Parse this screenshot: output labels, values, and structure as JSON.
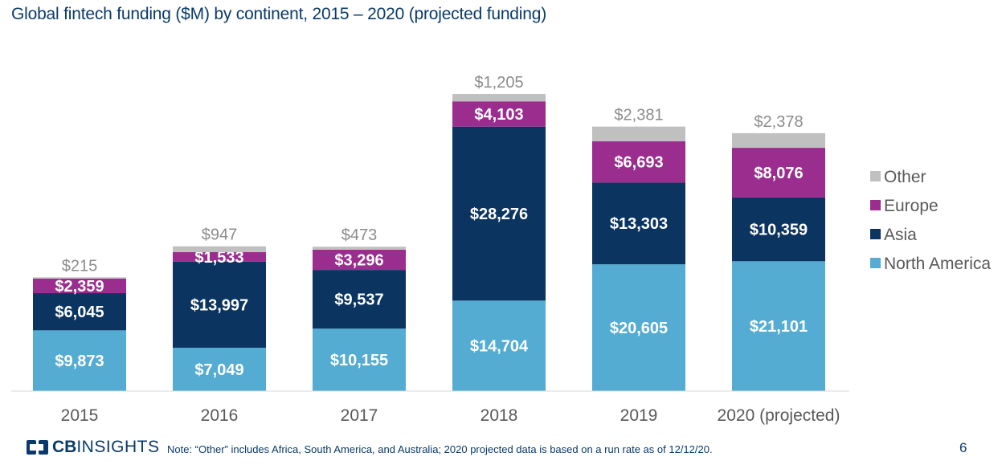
{
  "page": {
    "title": "Global fintech funding ($M) by continent, 2015 – 2020 (projected funding)",
    "note": "Note: “Other” includes Africa, South America, and Australia; 2020 projected data is based on a run rate as of 12/12/20.",
    "page_number": "6",
    "logo": {
      "cb": "CB",
      "insights": "INSIGHTS",
      "icon": "cbinsights-logo-icon"
    }
  },
  "colors": {
    "north_america": "#54acd2",
    "asia": "#0b3460",
    "europe": "#9b2d8f",
    "other": "#c0c0c0",
    "title": "#0a3a6b"
  },
  "chart_data": {
    "type": "bar",
    "stacked": true,
    "categories": [
      "2015",
      "2016",
      "2017",
      "2018",
      "2019",
      "2020 (projected)"
    ],
    "series": [
      {
        "name": "North America",
        "values": [
          9873,
          7049,
          10155,
          14704,
          20605,
          21101
        ],
        "labels": [
          "$9,873",
          "$7,049",
          "$10,155",
          "$14,704",
          "$20,605",
          "$21,101"
        ]
      },
      {
        "name": "Asia",
        "values": [
          6045,
          13997,
          9537,
          28276,
          13303,
          10359
        ],
        "labels": [
          "$6,045",
          "$13,997",
          "$9,537",
          "$28,276",
          "$13,303",
          "$10,359"
        ]
      },
      {
        "name": "Europe",
        "values": [
          2359,
          1533,
          3296,
          4103,
          6693,
          8076
        ],
        "labels": [
          "$2,359",
          "$1,533",
          "$3,296",
          "$4,103",
          "$6,693",
          "$8,076"
        ]
      },
      {
        "name": "Other",
        "values": [
          215,
          947,
          473,
          1205,
          2381,
          2378
        ],
        "labels": [
          "$215",
          "$947",
          "$473",
          "$1,205",
          "$2,381",
          "$2,378"
        ]
      }
    ],
    "legend": {
      "position": "right",
      "order": [
        "Other",
        "Europe",
        "Asia",
        "North America"
      ]
    },
    "grid": false,
    "ylim": [
      0,
      50000
    ]
  }
}
